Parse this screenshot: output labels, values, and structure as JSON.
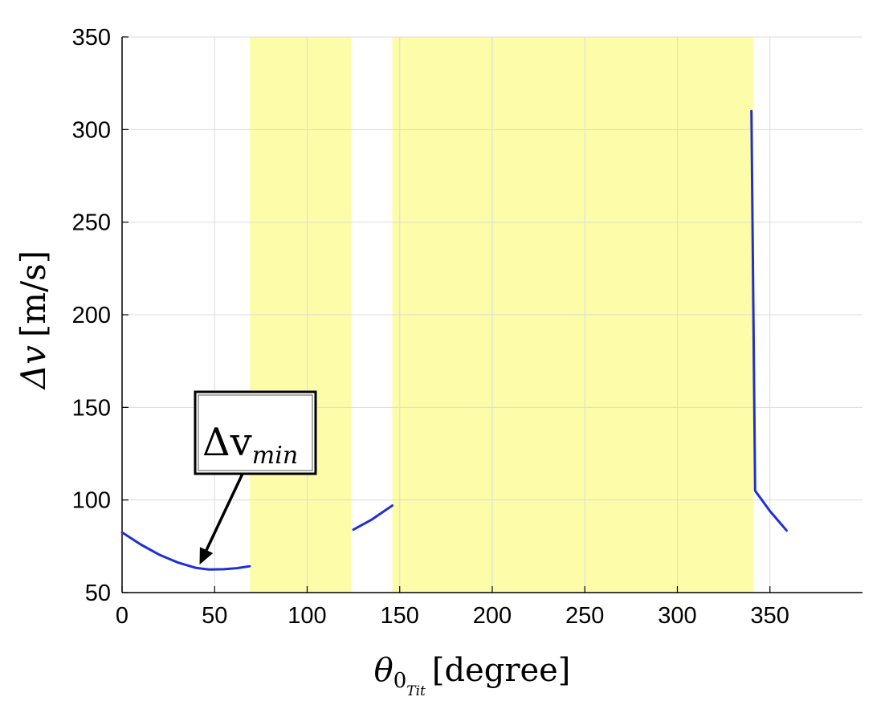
{
  "chart_data": {
    "type": "line",
    "title": "",
    "xlabel": {
      "symbol": "θ",
      "sub1": "0",
      "sub2": "Tit",
      "unit": "[degree]"
    },
    "ylabel": {
      "symbol": "Δv",
      "unit": "[m/s]"
    },
    "xlim": [
      0,
      400
    ],
    "ylim": [
      50,
      350
    ],
    "xticks": [
      0,
      50,
      100,
      150,
      200,
      250,
      300,
      350
    ],
    "yticks": [
      50,
      100,
      150,
      200,
      250,
      300,
      350
    ],
    "grid": true,
    "line_color": "#1f2fd6",
    "shade_color": "#fdfca8",
    "shaded_regions": [
      [
        69,
        124
      ],
      [
        146,
        341
      ]
    ],
    "series": [
      {
        "segments": [
          [
            [
              0,
              82.5
            ],
            [
              10,
              76.0
            ],
            [
              20,
              70.5
            ],
            [
              30,
              66.3
            ],
            [
              40,
              63.3
            ],
            [
              47,
              62.5
            ],
            [
              55,
              62.6
            ],
            [
              62,
              63.2
            ],
            [
              69,
              64.2
            ]
          ],
          [
            [
              125,
              84.0
            ],
            [
              135,
              89.5
            ],
            [
              146,
              97.0
            ]
          ],
          [
            [
              340,
              310.0
            ],
            [
              342,
              105.0
            ],
            [
              350,
              94.0
            ],
            [
              359,
              83.5
            ]
          ]
        ]
      }
    ],
    "annotation": {
      "text_main": "Δv",
      "text_sub": "min",
      "arrow_target": [
        41,
        62.5
      ]
    }
  }
}
